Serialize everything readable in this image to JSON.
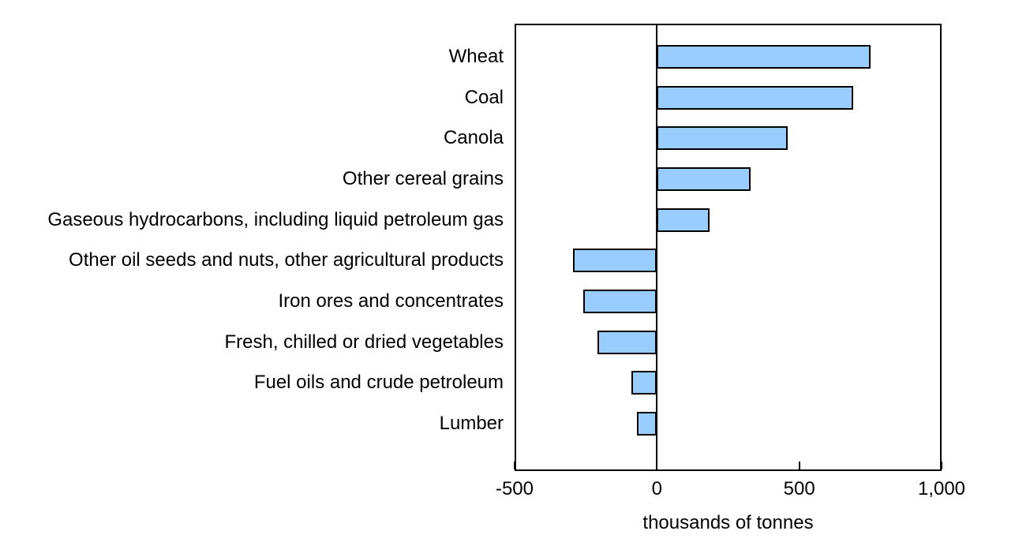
{
  "chart_data": {
    "type": "bar",
    "orientation": "horizontal",
    "categories": [
      "Wheat",
      "Coal",
      "Canola",
      "Other cereal grains",
      "Gaseous hydrocarbons, including liquid petroleum gas",
      "Other oil seeds and nuts, other agricultural products",
      "Iron ores and concentrates",
      "Fresh, chilled or dried vegetables",
      "Fuel oils and crude petroleum",
      "Lumber"
    ],
    "values": [
      750,
      690,
      460,
      330,
      185,
      -295,
      -260,
      -210,
      -90,
      -70
    ],
    "xlabel": "thousands of tonnes",
    "xlim": [
      -500,
      1000
    ],
    "xticks": [
      -500,
      0,
      500,
      1000
    ],
    "xtick_labels": [
      "-500",
      "0",
      "500",
      "1,000"
    ],
    "grid": false,
    "legend": false,
    "bar_color": "#99CCFF",
    "bar_border_color": "#000000",
    "axis_color": "#000000",
    "background_color": "#FFFFFF"
  }
}
